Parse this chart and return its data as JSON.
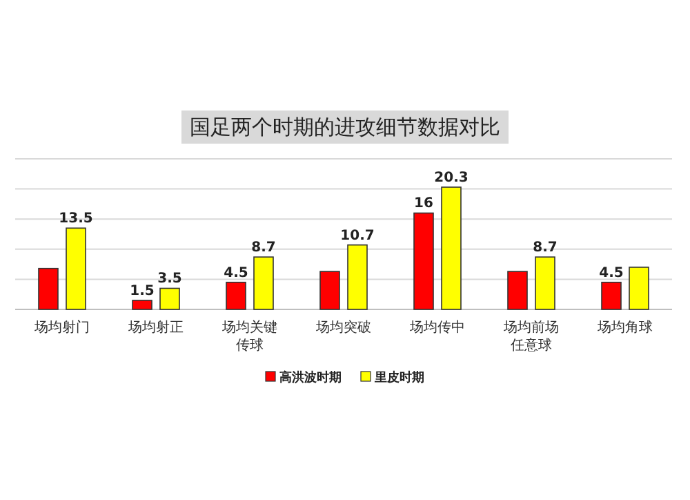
{
  "chart_data": {
    "type": "bar",
    "title": "国足两个时期的进攻细节数据对比",
    "categories": [
      "场均射门",
      "场均射正",
      "场均关键传球",
      "场均突破",
      "场均传中",
      "场均前场任意球",
      "场均角球"
    ],
    "series": [
      {
        "name": "高洪波时期",
        "color": "#ff0000",
        "values": [
          6.8,
          1.5,
          4.5,
          6.3,
          16,
          6.3,
          4.5
        ],
        "value_labels": [
          null,
          "1.5",
          "4.5",
          null,
          "16",
          null,
          "4.5"
        ]
      },
      {
        "name": "里皮时期",
        "color": "#ffff00",
        "values": [
          13.5,
          3.5,
          8.7,
          10.7,
          20.3,
          8.7,
          7.0
        ],
        "value_labels": [
          "13.5",
          "3.5",
          "8.7",
          "10.7",
          "20.3",
          "8.7",
          null
        ]
      }
    ],
    "ylim": [
      0,
      25
    ],
    "yticks": [
      {
        "value": 0,
        "label": null
      },
      {
        "value": 5,
        "label": null
      },
      {
        "value": 10,
        "label": null
      },
      {
        "value": 15,
        "label": null
      },
      {
        "value": 20,
        "label": null
      },
      {
        "value": 25,
        "label": null
      }
    ],
    "grid": "y",
    "legend": "bottom"
  }
}
